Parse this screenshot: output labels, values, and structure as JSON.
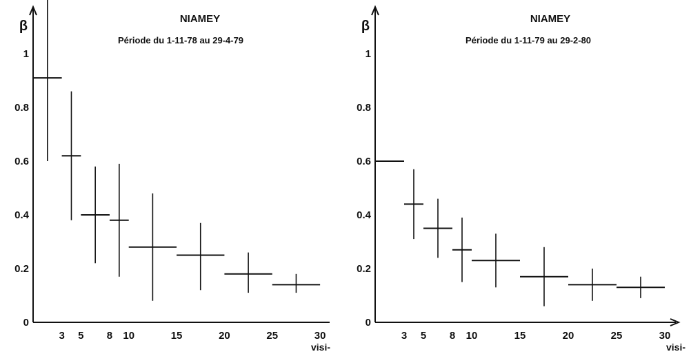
{
  "chart_data": [
    {
      "type": "errorbar",
      "title": "NIAMEY",
      "subtitle": "Période du 1-11-78 au 29-4-79",
      "ylabel": "β",
      "xlabel": "visi-",
      "xlim": [
        0,
        31
      ],
      "ylim": [
        0,
        1.3
      ],
      "xticks": [
        "3",
        "5",
        "8",
        "10",
        "15",
        "20",
        "25",
        "30"
      ],
      "xtick_values": [
        3,
        5,
        8,
        10,
        15,
        20,
        25,
        30
      ],
      "yticks": [
        "0",
        "0.2",
        "0.4",
        "0.6",
        "0.8",
        "1"
      ],
      "ytick_values": [
        0,
        0.2,
        0.4,
        0.6,
        0.8,
        1.0
      ],
      "points": [
        {
          "x_from": 0,
          "x_to": 3,
          "y": 0.91,
          "y_low": 0.6,
          "y_high": 1.23
        },
        {
          "x_from": 3,
          "x_to": 5,
          "y": 0.62,
          "y_low": 0.38,
          "y_high": 0.86
        },
        {
          "x_from": 5,
          "x_to": 8,
          "y": 0.4,
          "y_low": 0.22,
          "y_high": 0.58
        },
        {
          "x_from": 8,
          "x_to": 10,
          "y": 0.38,
          "y_low": 0.17,
          "y_high": 0.59
        },
        {
          "x_from": 10,
          "x_to": 15,
          "y": 0.28,
          "y_low": 0.08,
          "y_high": 0.48
        },
        {
          "x_from": 15,
          "x_to": 20,
          "y": 0.25,
          "y_low": 0.12,
          "y_high": 0.37
        },
        {
          "x_from": 20,
          "x_to": 25,
          "y": 0.18,
          "y_low": 0.11,
          "y_high": 0.26
        },
        {
          "x_from": 25,
          "x_to": 30,
          "y": 0.14,
          "y_low": 0.11,
          "y_high": 0.18
        }
      ]
    },
    {
      "type": "errorbar",
      "title": "NIAMEY",
      "subtitle": "Période du 1-11-79 au 29-2-80",
      "ylabel": "β",
      "xlabel": "visi-",
      "xlim": [
        0,
        31
      ],
      "ylim": [
        0,
        1.3
      ],
      "xticks": [
        "3",
        "5",
        "8",
        "10",
        "15",
        "20",
        "25",
        "30"
      ],
      "xtick_values": [
        3,
        5,
        8,
        10,
        15,
        20,
        25,
        30
      ],
      "yticks": [
        "0",
        "0.2",
        "0.4",
        "0.6",
        "0.8",
        "1"
      ],
      "ytick_values": [
        0,
        0.2,
        0.4,
        0.6,
        0.8,
        1.0
      ],
      "points": [
        {
          "x_from": 0,
          "x_to": 3,
          "y": 0.6,
          "y_low": 0.6,
          "y_high": 0.6
        },
        {
          "x_from": 3,
          "x_to": 5,
          "y": 0.44,
          "y_low": 0.31,
          "y_high": 0.57
        },
        {
          "x_from": 5,
          "x_to": 8,
          "y": 0.35,
          "y_low": 0.24,
          "y_high": 0.46
        },
        {
          "x_from": 8,
          "x_to": 10,
          "y": 0.27,
          "y_low": 0.15,
          "y_high": 0.39
        },
        {
          "x_from": 10,
          "x_to": 15,
          "y": 0.23,
          "y_low": 0.13,
          "y_high": 0.33
        },
        {
          "x_from": 15,
          "x_to": 20,
          "y": 0.17,
          "y_low": 0.06,
          "y_high": 0.28
        },
        {
          "x_from": 20,
          "x_to": 25,
          "y": 0.14,
          "y_low": 0.08,
          "y_high": 0.2
        },
        {
          "x_from": 25,
          "x_to": 30,
          "y": 0.13,
          "y_low": 0.09,
          "y_high": 0.17
        }
      ]
    }
  ]
}
